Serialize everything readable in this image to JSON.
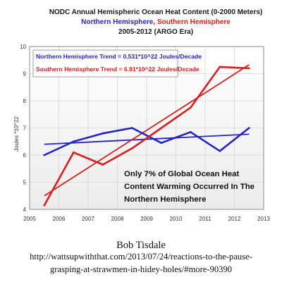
{
  "chart_data": {
    "type": "line",
    "title": "NODC Annual Hemispheric Ocean Heat Content  (0-2000 Meters)",
    "subtitle_north": "Northern Hemisphere",
    "subtitle_sep": ", ",
    "subtitle_south": "Southern Hemisphere",
    "subtitle_period": "2005-2012 (ARGO Era)",
    "ylabel": "Joules *10^22",
    "xlabel": "",
    "xlim": [
      2005,
      2013
    ],
    "ylim": [
      4,
      10
    ],
    "xticks": [
      2005,
      2006,
      2007,
      2008,
      2009,
      2010,
      2011,
      2012,
      2013
    ],
    "yticks": [
      4,
      5,
      6,
      7,
      8,
      9,
      10
    ],
    "grid": true,
    "series": [
      {
        "name": "Northern Hemisphere",
        "color": "#2424c8",
        "x": [
          2005.5,
          2006.5,
          2007.5,
          2008.5,
          2009.5,
          2010.5,
          2011.5,
          2012.5
        ],
        "values": [
          6.0,
          6.5,
          6.8,
          7.0,
          6.45,
          6.85,
          6.15,
          7.0
        ]
      },
      {
        "name": "Southern Hemisphere",
        "color": "#dc1e1e",
        "x": [
          2005.5,
          2006.5,
          2007.5,
          2008.5,
          2009.5,
          2010.5,
          2011.5,
          2012.5
        ],
        "values": [
          4.15,
          6.1,
          5.65,
          6.25,
          7.0,
          7.75,
          9.25,
          9.2
        ]
      }
    ],
    "trendlines": [
      {
        "label": "Northern Hemisphere Trend = 0.531*10^22 Joules/Decade",
        "color": "#2424c8",
        "x": [
          2005.5,
          2012.5
        ],
        "values": [
          6.4,
          6.77
        ]
      },
      {
        "label": "Southern Hemisphere Trend = 6.91*10^22 Joules/Decade",
        "color": "#dc1e1e",
        "x": [
          2005.5,
          2012.5
        ],
        "values": [
          4.5,
          9.33
        ]
      }
    ],
    "annotation_lines": [
      "Only 7% of Global Ocean Heat",
      "Content Warming Occurred In The",
      "Northern Hemisphere"
    ]
  },
  "caption": {
    "author": "Bob Tisdale",
    "link_line1": "http://wattsupwiththat.com/2013/07/24/reactions-to-the-pause-",
    "link_line2": "grasping-at-strawmen-in-hidey-holes/#more-90390"
  },
  "colors": {
    "plot_border": "#8a8a8a",
    "grid": "#d4d4d4",
    "north": "#2424c8",
    "south": "#dc1e1e"
  }
}
